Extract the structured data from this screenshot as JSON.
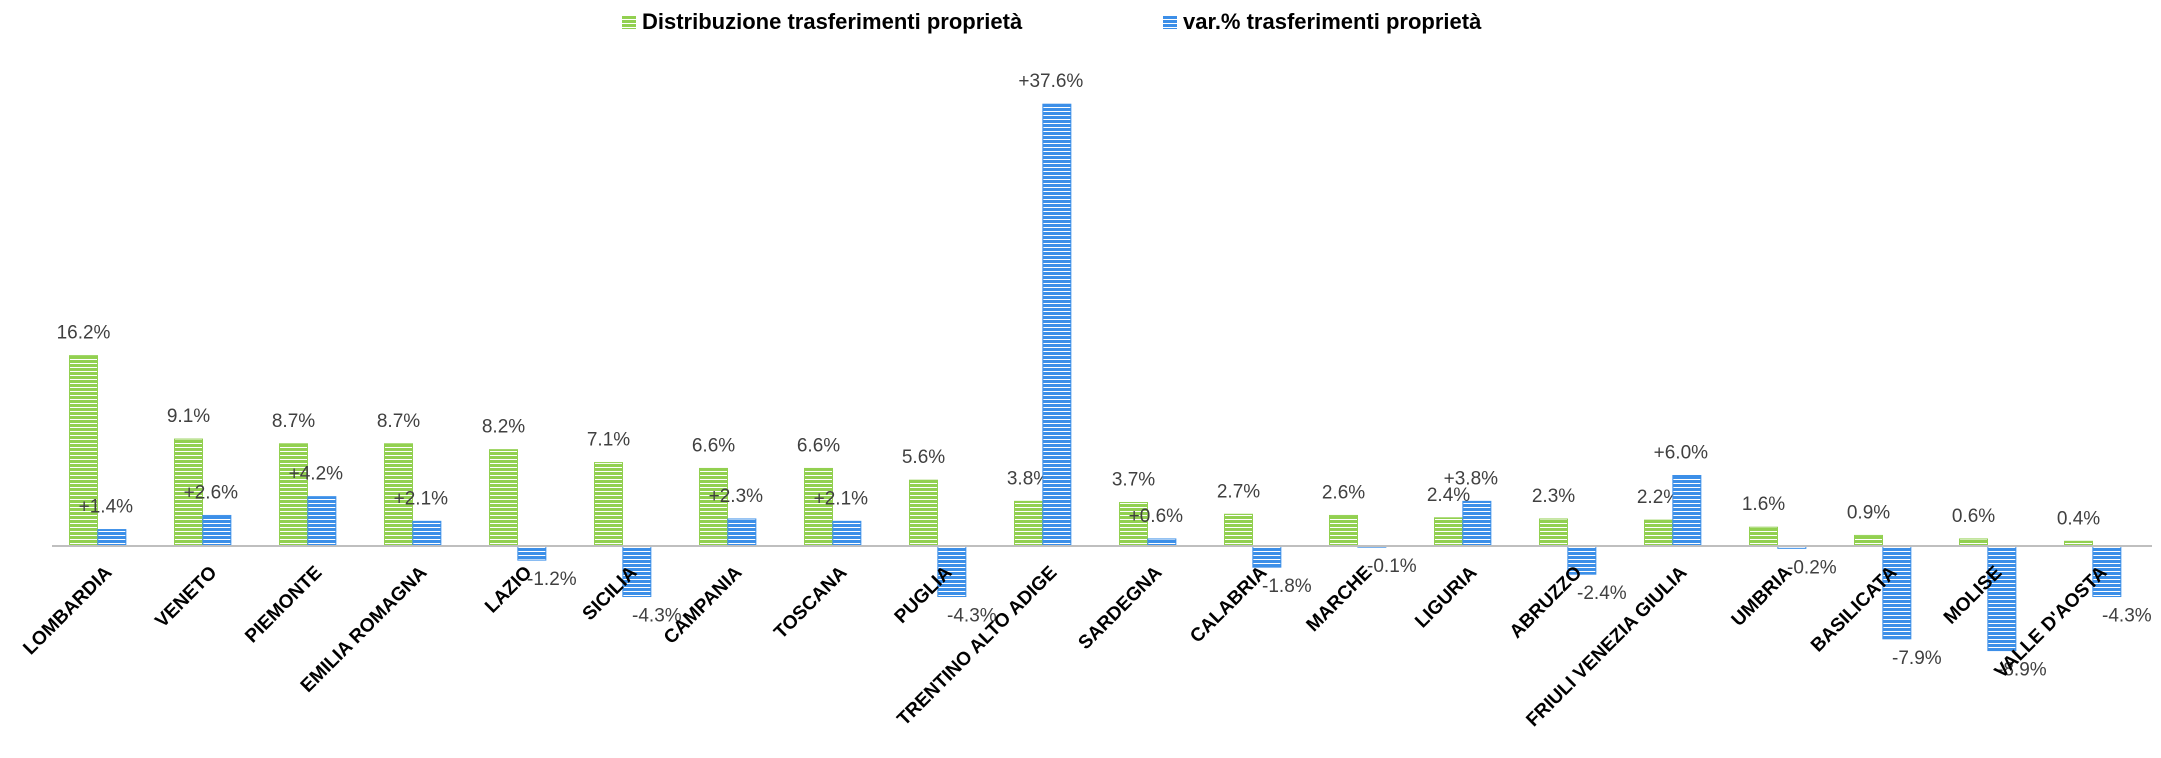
{
  "chart_data": {
    "type": "bar",
    "categories": [
      "LOMBARDIA",
      "VENETO",
      "PIEMONTE",
      "EMILIA ROMAGNA",
      "LAZIO",
      "SICILIA",
      "CAMPANIA",
      "TOSCANA",
      "PUGLIA",
      "TRENTINO ALTO ADIGE",
      "SARDEGNA",
      "CALABRIA",
      "MARCHE",
      "LIGURIA",
      "ABRUZZO",
      "FRIULI VENEZIA GIULIA",
      "UMBRIA",
      "BASILICATA",
      "MOLISE",
      "VALLE D'AOSTA"
    ],
    "series": [
      {
        "name": "Distribuzione trasferimenti proprietà",
        "color": "#92d050",
        "values": [
          16.2,
          9.1,
          8.7,
          8.7,
          8.2,
          7.1,
          6.6,
          6.6,
          5.6,
          3.8,
          3.7,
          2.7,
          2.6,
          2.4,
          2.3,
          2.2,
          1.6,
          0.9,
          0.6,
          0.4
        ],
        "value_labels": [
          "16.2%",
          "9.1%",
          "8.7%",
          "8.7%",
          "8.2%",
          "7.1%",
          "6.6%",
          "6.6%",
          "5.6%",
          "3.8%",
          "3.7%",
          "2.7%",
          "2.6%",
          "2.4%",
          "2.3%",
          "2.2%",
          "1.6%",
          "0.9%",
          "0.6%",
          "0.4%"
        ]
      },
      {
        "name": "var.% trasferimenti proprietà",
        "color": "#3c8fe8",
        "values": [
          1.4,
          2.6,
          4.2,
          2.1,
          -1.2,
          -4.3,
          2.3,
          2.1,
          -4.3,
          37.6,
          0.6,
          -1.8,
          -0.1,
          3.8,
          -2.4,
          6.0,
          -0.2,
          -7.9,
          -8.9,
          -4.3
        ],
        "value_labels": [
          "+1.4%",
          "+2.6%",
          "+4.2%",
          "+2.1%",
          "-1.2%",
          "-4.3%",
          "+2.3%",
          "+2.1%",
          "-4.3%",
          "+37.6%",
          "+0.6%",
          "-1.8%",
          "-0.1%",
          "+3.8%",
          "-2.4%",
          "+6.0%",
          "-0.2%",
          "-7.9%",
          "-8.9%",
          "-4.3%"
        ]
      }
    ],
    "legend": "top"
  }
}
